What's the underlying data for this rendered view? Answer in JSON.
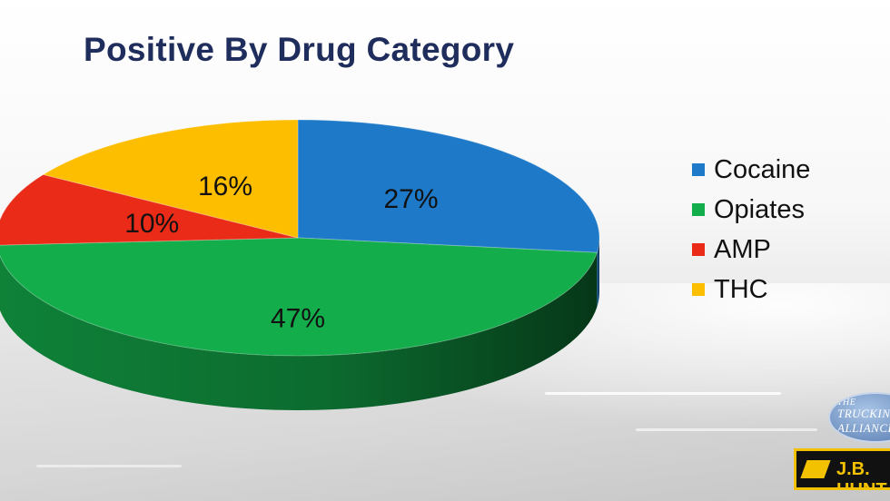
{
  "title": "Positive By Drug Category",
  "chart_data": {
    "type": "pie",
    "title": "Positive By Drug Category",
    "slices": [
      {
        "name": "Cocaine",
        "value": 27,
        "label": "27%",
        "color": "#1e7ac8"
      },
      {
        "name": "Opiates",
        "value": 47,
        "label": "47%",
        "color": "#14ad4b"
      },
      {
        "name": "AMP",
        "value": 10,
        "label": "10%",
        "color": "#ea2b18"
      },
      {
        "name": "THC",
        "value": 16,
        "label": "16%",
        "color": "#fdbe00"
      }
    ],
    "legend_position": "right",
    "style": "3d"
  },
  "logos": {
    "trucking_alliance": "THE TRUCKING ALLIANCE",
    "jb_hunt": "J.B. HUNT"
  },
  "colors": {
    "title": "#1f2d5c",
    "opiates_side": "#0b6f2c"
  }
}
